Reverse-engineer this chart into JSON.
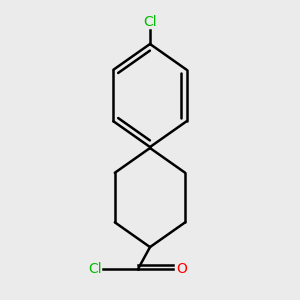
{
  "background_color": "#ebebeb",
  "bond_color": "#000000",
  "cl_color": "#00bb00",
  "o_color": "#ff0000",
  "line_width": 1.8,
  "figsize": [
    3.0,
    3.0
  ],
  "dpi": 100,
  "cl_top_label": "Cl",
  "cl_bottom_label": "Cl",
  "o_label": "O"
}
